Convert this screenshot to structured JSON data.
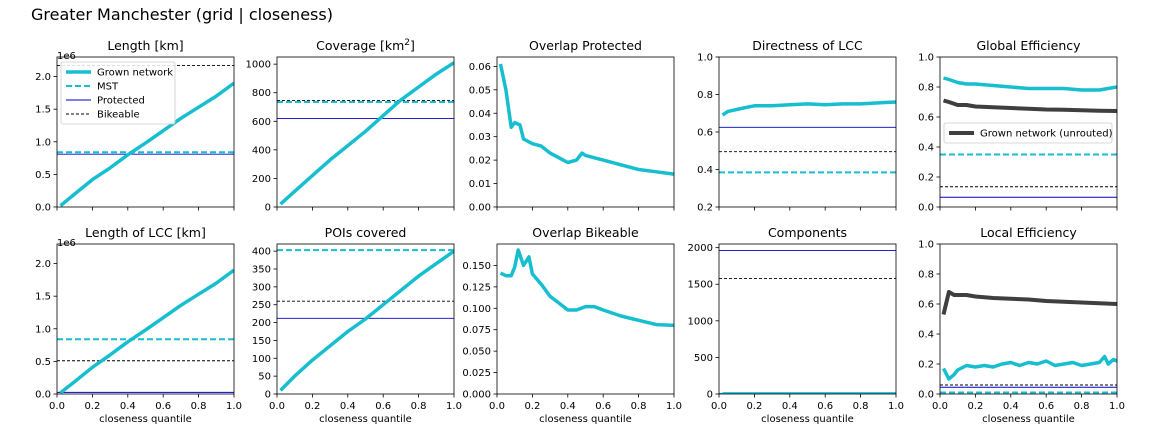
{
  "figure": {
    "suptitle": "Greater Manchester (grid | closeness)"
  },
  "colors": {
    "grown": "#17becf",
    "protected": "#0000cd",
    "bikeable": "#000000",
    "unrouted": "#3f3f3f"
  },
  "chart_data": [
    {
      "type": "line",
      "title": "Length [km]",
      "xlabel": "",
      "ylim": [
        0,
        2300000
      ],
      "yticks": [
        "0.0",
        "0.5",
        "1.0",
        "1.5",
        "2.0"
      ],
      "ytick_values": [
        0,
        500000,
        1000000,
        1500000,
        2000000
      ],
      "offset_text": "1e6",
      "xticklabels_visible": false,
      "legend": {
        "location": "upper-left",
        "entries": [
          "Grown network",
          "MST",
          "Protected",
          "Bikeable"
        ]
      },
      "series": [
        {
          "name": "Grown network",
          "x": [
            0.02,
            0.1,
            0.2,
            0.3,
            0.4,
            0.5,
            0.6,
            0.7,
            0.8,
            0.9,
            1.0
          ],
          "y": [
            20000,
            200000,
            420000,
            600000,
            800000,
            980000,
            1170000,
            1360000,
            1530000,
            1700000,
            1900000
          ]
        }
      ],
      "hlines": [
        {
          "role": "mst",
          "y": 840000
        },
        {
          "role": "protected",
          "y": 810000
        },
        {
          "role": "bikeable",
          "y": 2170000
        }
      ]
    },
    {
      "type": "line",
      "title": "Coverage [km²]",
      "xlabel": "",
      "ylim": [
        0,
        1050
      ],
      "yticks": [
        "0",
        "200",
        "400",
        "600",
        "800",
        "1000"
      ],
      "ytick_values": [
        0,
        200,
        400,
        600,
        800,
        1000
      ],
      "xticklabels_visible": false,
      "series": [
        {
          "x": [
            0.02,
            0.1,
            0.2,
            0.3,
            0.4,
            0.5,
            0.6,
            0.7,
            0.8,
            0.9,
            1.0
          ],
          "y": [
            20,
            110,
            220,
            330,
            430,
            530,
            640,
            750,
            840,
            930,
            1010
          ]
        }
      ],
      "hlines": [
        {
          "role": "mst",
          "y": 735
        },
        {
          "role": "protected",
          "y": 620
        },
        {
          "role": "bikeable",
          "y": 745
        }
      ]
    },
    {
      "type": "line",
      "title": "Overlap Protected",
      "xlabel": "",
      "ylim": [
        0,
        0.064
      ],
      "yticks": [
        "0.00",
        "0.01",
        "0.02",
        "0.03",
        "0.04",
        "0.05",
        "0.06"
      ],
      "ytick_values": [
        0,
        0.01,
        0.02,
        0.03,
        0.04,
        0.05,
        0.06
      ],
      "xticklabels_visible": false,
      "series": [
        {
          "x": [
            0.02,
            0.05,
            0.08,
            0.1,
            0.13,
            0.15,
            0.2,
            0.25,
            0.3,
            0.35,
            0.4,
            0.45,
            0.48,
            0.5,
            0.55,
            0.6,
            0.7,
            0.8,
            0.9,
            1.0
          ],
          "y": [
            0.061,
            0.05,
            0.034,
            0.036,
            0.035,
            0.029,
            0.027,
            0.026,
            0.023,
            0.021,
            0.019,
            0.02,
            0.023,
            0.022,
            0.021,
            0.02,
            0.018,
            0.016,
            0.015,
            0.014
          ]
        }
      ],
      "hlines": []
    },
    {
      "type": "line",
      "title": "Directness of LCC",
      "xlabel": "",
      "ylim": [
        0.2,
        1.0
      ],
      "yticks": [
        "0.2",
        "0.4",
        "0.6",
        "0.8",
        "1.0"
      ],
      "ytick_values": [
        0.2,
        0.4,
        0.6,
        0.8,
        1.0
      ],
      "xticklabels_visible": false,
      "series": [
        {
          "x": [
            0.02,
            0.05,
            0.1,
            0.15,
            0.2,
            0.3,
            0.4,
            0.5,
            0.6,
            0.7,
            0.8,
            0.9,
            1.0
          ],
          "y": [
            0.69,
            0.71,
            0.72,
            0.73,
            0.74,
            0.74,
            0.745,
            0.75,
            0.745,
            0.75,
            0.75,
            0.755,
            0.76
          ]
        }
      ],
      "hlines": [
        {
          "role": "mst",
          "y": 0.385
        },
        {
          "role": "protected",
          "y": 0.625
        },
        {
          "role": "bikeable",
          "y": 0.495
        }
      ]
    },
    {
      "type": "line",
      "title": "Global Efficiency",
      "xlabel": "",
      "ylim": [
        0,
        1.0
      ],
      "yticks": [
        "0.0",
        "0.2",
        "0.4",
        "0.6",
        "0.8",
        "1.0"
      ],
      "ytick_values": [
        0,
        0.2,
        0.4,
        0.6,
        0.8,
        1.0
      ],
      "xticklabels_visible": false,
      "legend": {
        "location": "center-right",
        "entries": [
          "Grown network (unrouted)"
        ]
      },
      "series": [
        {
          "role": "grown",
          "x": [
            0.02,
            0.05,
            0.1,
            0.15,
            0.2,
            0.3,
            0.4,
            0.5,
            0.6,
            0.7,
            0.8,
            0.9,
            1.0
          ],
          "y": [
            0.86,
            0.85,
            0.83,
            0.82,
            0.82,
            0.81,
            0.8,
            0.79,
            0.79,
            0.79,
            0.78,
            0.78,
            0.8
          ]
        },
        {
          "role": "unrouted",
          "name": "Grown network (unrouted)",
          "x": [
            0.02,
            0.05,
            0.1,
            0.15,
            0.2,
            0.3,
            0.4,
            0.5,
            0.6,
            0.7,
            0.8,
            0.9,
            1.0
          ],
          "y": [
            0.71,
            0.7,
            0.68,
            0.68,
            0.67,
            0.665,
            0.66,
            0.655,
            0.65,
            0.648,
            0.645,
            0.642,
            0.64
          ]
        }
      ],
      "hlines": [
        {
          "role": "mst",
          "y": 0.35
        },
        {
          "role": "protected",
          "y": 0.065
        },
        {
          "role": "bikeable",
          "y": 0.135
        }
      ]
    },
    {
      "type": "line",
      "title": "Length of LCC [km]",
      "xlabel": "closeness quantile",
      "ylim": [
        0,
        2300000
      ],
      "yticks": [
        "0.0",
        "0.5",
        "1.0",
        "1.5",
        "2.0"
      ],
      "ytick_values": [
        0,
        500000,
        1000000,
        1500000,
        2000000
      ],
      "offset_text": "1e6",
      "xticklabels_visible": true,
      "series": [
        {
          "x": [
            0.02,
            0.1,
            0.2,
            0.3,
            0.4,
            0.5,
            0.6,
            0.7,
            0.8,
            0.9,
            1.0
          ],
          "y": [
            20000,
            190000,
            410000,
            600000,
            800000,
            980000,
            1170000,
            1360000,
            1530000,
            1700000,
            1900000
          ]
        }
      ],
      "hlines": [
        {
          "role": "mst",
          "y": 840000
        },
        {
          "role": "protected",
          "y": 25000
        },
        {
          "role": "bikeable",
          "y": 510000
        }
      ]
    },
    {
      "type": "line",
      "title": "POIs covered",
      "xlabel": "closeness quantile",
      "ylim": [
        0,
        420
      ],
      "yticks": [
        "0",
        "50",
        "100",
        "150",
        "200",
        "250",
        "300",
        "350",
        "400"
      ],
      "ytick_values": [
        0,
        50,
        100,
        150,
        200,
        250,
        300,
        350,
        400
      ],
      "xticklabels_visible": true,
      "series": [
        {
          "x": [
            0.02,
            0.1,
            0.2,
            0.3,
            0.4,
            0.5,
            0.6,
            0.7,
            0.8,
            0.9,
            1.0
          ],
          "y": [
            10,
            50,
            95,
            135,
            175,
            210,
            250,
            290,
            330,
            365,
            400
          ]
        }
      ],
      "hlines": [
        {
          "role": "mst",
          "y": 403
        },
        {
          "role": "protected",
          "y": 212
        },
        {
          "role": "bikeable",
          "y": 260
        }
      ]
    },
    {
      "type": "line",
      "title": "Overlap Bikeable",
      "xlabel": "closeness quantile",
      "ylim": [
        0,
        0.175
      ],
      "yticks": [
        "0.000",
        "0.025",
        "0.050",
        "0.075",
        "0.100",
        "0.125",
        "0.150"
      ],
      "ytick_values": [
        0,
        0.025,
        0.05,
        0.075,
        0.1,
        0.125,
        0.15
      ],
      "xticklabels_visible": true,
      "series": [
        {
          "x": [
            0.02,
            0.05,
            0.08,
            0.1,
            0.12,
            0.15,
            0.18,
            0.2,
            0.25,
            0.3,
            0.35,
            0.4,
            0.45,
            0.5,
            0.55,
            0.6,
            0.7,
            0.8,
            0.9,
            1.0
          ],
          "y": [
            0.141,
            0.138,
            0.138,
            0.148,
            0.168,
            0.15,
            0.16,
            0.14,
            0.128,
            0.114,
            0.106,
            0.098,
            0.098,
            0.102,
            0.102,
            0.098,
            0.091,
            0.086,
            0.081,
            0.08
          ]
        }
      ],
      "hlines": []
    },
    {
      "type": "line",
      "title": "Components",
      "xlabel": "closeness quantile",
      "ylim": [
        0,
        2050
      ],
      "yticks": [
        "0",
        "500",
        "1000",
        "1500",
        "2000"
      ],
      "ytick_values": [
        0,
        500,
        1000,
        1500,
        2000
      ],
      "xticklabels_visible": true,
      "series": [
        {
          "x": [
            0.02,
            0.1,
            0.2,
            0.3,
            0.4,
            0.5,
            0.6,
            0.7,
            0.8,
            0.9,
            1.0
          ],
          "y": [
            1,
            1,
            1,
            1,
            1,
            1,
            1,
            1,
            1,
            1,
            1
          ]
        }
      ],
      "hlines": [
        {
          "role": "mst",
          "y": 1
        },
        {
          "role": "protected",
          "y": 1960
        },
        {
          "role": "bikeable",
          "y": 1580
        }
      ]
    },
    {
      "type": "line",
      "title": "Local Efficiency",
      "xlabel": "closeness quantile",
      "ylim": [
        0,
        1.0
      ],
      "yticks": [
        "0.0",
        "0.2",
        "0.4",
        "0.6",
        "0.8",
        "1.0"
      ],
      "ytick_values": [
        0,
        0.2,
        0.4,
        0.6,
        0.8,
        1.0
      ],
      "xticklabels_visible": true,
      "series": [
        {
          "role": "grown",
          "x": [
            0.02,
            0.05,
            0.08,
            0.1,
            0.15,
            0.2,
            0.25,
            0.3,
            0.35,
            0.4,
            0.45,
            0.5,
            0.55,
            0.6,
            0.65,
            0.7,
            0.75,
            0.8,
            0.85,
            0.9,
            0.93,
            0.95,
            0.98,
            1.0
          ],
          "y": [
            0.17,
            0.1,
            0.13,
            0.16,
            0.19,
            0.18,
            0.19,
            0.18,
            0.2,
            0.21,
            0.19,
            0.21,
            0.2,
            0.22,
            0.19,
            0.2,
            0.21,
            0.19,
            0.2,
            0.21,
            0.25,
            0.2,
            0.23,
            0.22
          ]
        },
        {
          "role": "unrouted",
          "x": [
            0.02,
            0.05,
            0.08,
            0.1,
            0.15,
            0.2,
            0.3,
            0.4,
            0.5,
            0.6,
            0.7,
            0.8,
            0.9,
            1.0
          ],
          "y": [
            0.53,
            0.68,
            0.66,
            0.66,
            0.66,
            0.65,
            0.64,
            0.635,
            0.63,
            0.62,
            0.615,
            0.61,
            0.605,
            0.6
          ]
        }
      ],
      "hlines": [
        {
          "role": "mst",
          "y": 0.01
        },
        {
          "role": "protected",
          "y": 0.045
        },
        {
          "role": "bikeable",
          "y": 0.06
        }
      ]
    }
  ],
  "xaxis": {
    "ticks": [
      "0.0",
      "0.2",
      "0.4",
      "0.6",
      "0.8",
      "1.0"
    ],
    "tick_values": [
      0,
      0.2,
      0.4,
      0.6,
      0.8,
      1.0
    ],
    "xlim": [
      0,
      1.0
    ]
  }
}
